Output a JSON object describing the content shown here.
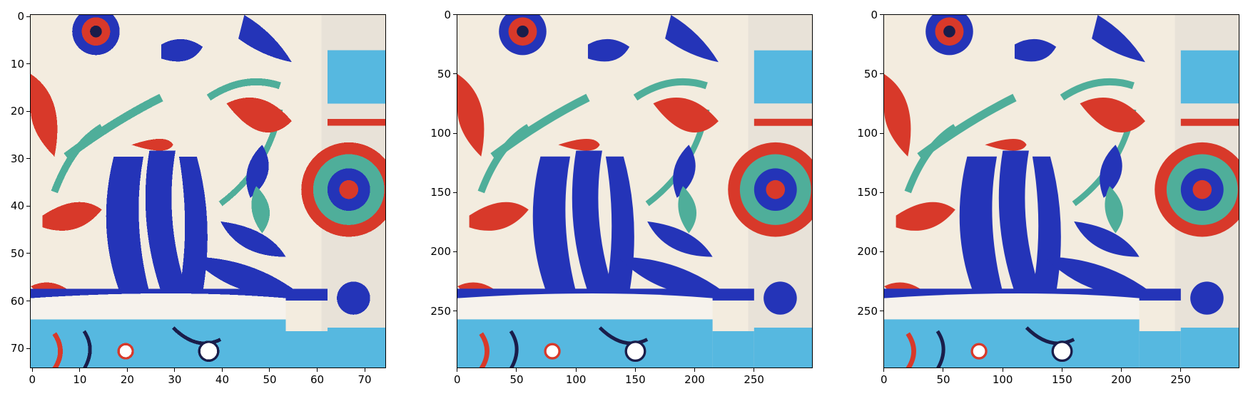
{
  "panels": [
    {
      "id": "low-res",
      "pixelated": true,
      "x_ticks": [
        "0",
        "10",
        "20",
        "30",
        "40",
        "50",
        "60",
        "70"
      ],
      "y_ticks": [
        "0",
        "10",
        "20",
        "30",
        "40",
        "50",
        "60",
        "70"
      ]
    },
    {
      "id": "upscaled-a",
      "pixelated": false,
      "x_ticks": [
        "0",
        "50",
        "100",
        "150",
        "200",
        "250"
      ],
      "y_ticks": [
        "0",
        "50",
        "100",
        "150",
        "200",
        "250"
      ]
    },
    {
      "id": "upscaled-b",
      "pixelated": false,
      "x_ticks": [
        "0",
        "50",
        "100",
        "150",
        "200",
        "250"
      ],
      "y_ticks": [
        "0",
        "50",
        "100",
        "150",
        "200",
        "250"
      ]
    }
  ],
  "colors": {
    "cream": "#f3ecdf",
    "cobalt": "#2434b8",
    "red": "#d8392a",
    "turquoise": "#4fae9a",
    "sky": "#56b8e0",
    "dark": "#1a1d4a"
  }
}
